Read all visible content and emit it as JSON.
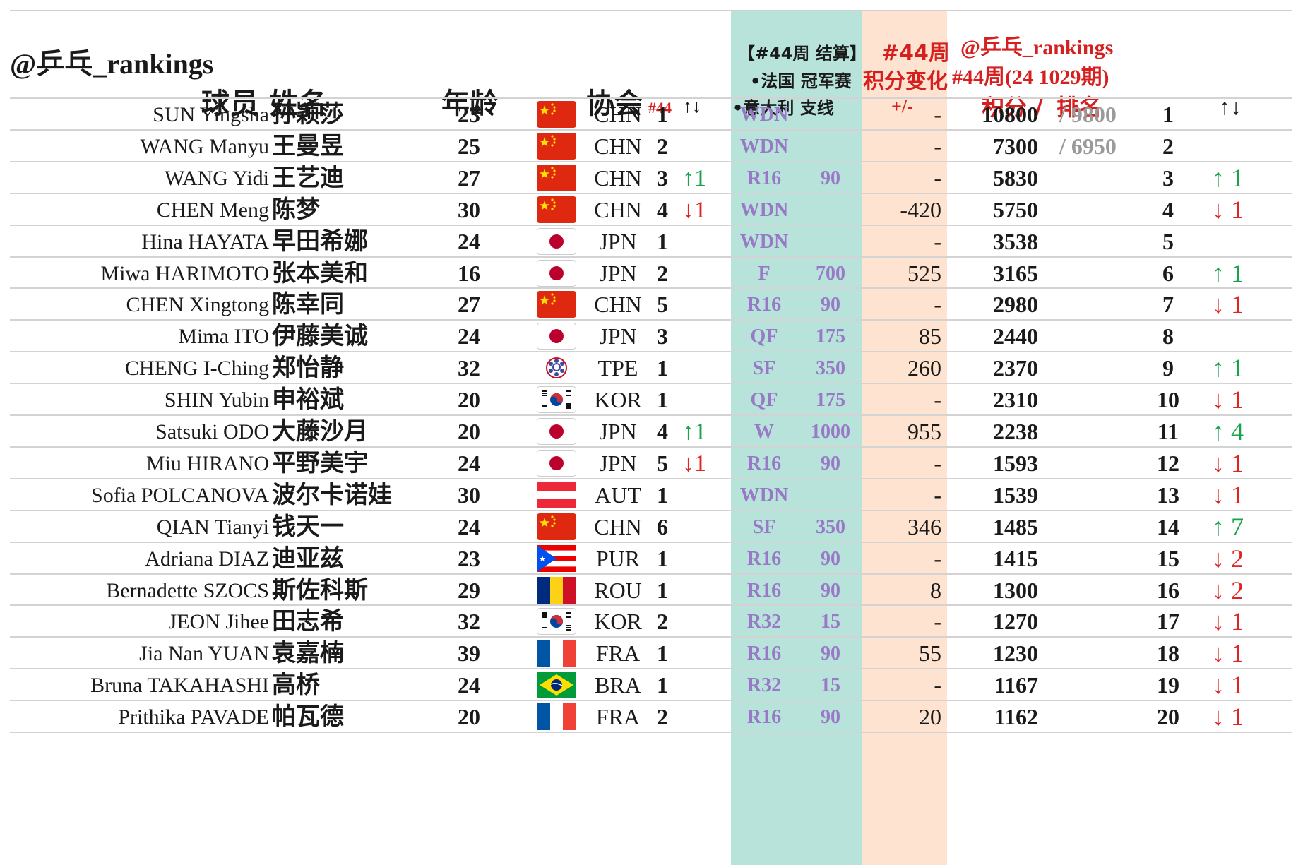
{
  "watermark": "@乒乓_rankings",
  "header": {
    "name": "球员 姓名",
    "age": "年龄",
    "association": "协会",
    "assoc_rank_week": "#44",
    "assoc_rank_arrows": "↑↓",
    "result_title": "【#44周 结算】",
    "result_event1": "•法国 冠军赛",
    "result_event2": "•意大利 支线",
    "change_title_1": "#44周",
    "change_title_2": "积分变化",
    "change_sub": "+/-",
    "ranking_title_1": "@乒乓_rankings",
    "ranking_title_2": "#44周(24 1029期)",
    "ranking_points": "积分 /",
    "ranking_rank": "排名",
    "rank_change_arrows": "↑↓"
  },
  "colors": {
    "result_band": "#b7e3da",
    "change_band": "#fde3d0",
    "red": "#d62020",
    "green": "#16a34a",
    "round_purple": "#9a78c8"
  },
  "rows": [
    {
      "en": "SUN Yingsha",
      "zh": "孙颖莎",
      "age": "23",
      "flag": "chn-flag",
      "code": "CHN",
      "assoc_rank": "1",
      "assoc_move": "",
      "assoc_dir": "",
      "round": "WDN",
      "round_pts": "",
      "delta": "-",
      "points": "10800",
      "prev": "/ 9800",
      "rank": "1",
      "rank_move": "",
      "rank_dir": ""
    },
    {
      "en": "WANG Manyu",
      "zh": "王曼昱",
      "age": "25",
      "flag": "chn-flag",
      "code": "CHN",
      "assoc_rank": "2",
      "assoc_move": "",
      "assoc_dir": "",
      "round": "WDN",
      "round_pts": "",
      "delta": "-",
      "points": "7300",
      "prev": "/ 6950",
      "rank": "2",
      "rank_move": "",
      "rank_dir": ""
    },
    {
      "en": "WANG Yidi",
      "zh": "王艺迪",
      "age": "27",
      "flag": "chn-flag",
      "code": "CHN",
      "assoc_rank": "3",
      "assoc_move": "↑1",
      "assoc_dir": "up",
      "round": "R16",
      "round_pts": "90",
      "delta": "-",
      "points": "5830",
      "prev": "",
      "rank": "3",
      "rank_move": "↑ 1",
      "rank_dir": "up"
    },
    {
      "en": "CHEN Meng",
      "zh": "陈梦",
      "age": "30",
      "flag": "chn-flag",
      "code": "CHN",
      "assoc_rank": "4",
      "assoc_move": "↓1",
      "assoc_dir": "down",
      "round": "WDN",
      "round_pts": "",
      "delta": "-420",
      "points": "5750",
      "prev": "",
      "rank": "4",
      "rank_move": "↓ 1",
      "rank_dir": "down"
    },
    {
      "en": "Hina HAYATA",
      "zh": "早田希娜",
      "age": "24",
      "flag": "jpn-flag",
      "code": "JPN",
      "assoc_rank": "1",
      "assoc_move": "",
      "assoc_dir": "",
      "round": "WDN",
      "round_pts": "",
      "delta": "-",
      "points": "3538",
      "prev": "",
      "rank": "5",
      "rank_move": "",
      "rank_dir": ""
    },
    {
      "en": "Miwa HARIMOTO",
      "zh": "张本美和",
      "age": "16",
      "flag": "jpn-flag",
      "code": "JPN",
      "assoc_rank": "2",
      "assoc_move": "",
      "assoc_dir": "",
      "round": "F",
      "round_pts": "700",
      "delta": "525",
      "points": "3165",
      "prev": "",
      "rank": "6",
      "rank_move": "↑ 1",
      "rank_dir": "up"
    },
    {
      "en": "CHEN Xingtong",
      "zh": "陈幸同",
      "age": "27",
      "flag": "chn-flag",
      "code": "CHN",
      "assoc_rank": "5",
      "assoc_move": "",
      "assoc_dir": "",
      "round": "R16",
      "round_pts": "90",
      "delta": "-",
      "points": "2980",
      "prev": "",
      "rank": "7",
      "rank_move": "↓ 1",
      "rank_dir": "down"
    },
    {
      "en": "Mima ITO",
      "zh": "伊藤美诚",
      "age": "24",
      "flag": "jpn-flag",
      "code": "JPN",
      "assoc_rank": "3",
      "assoc_move": "",
      "assoc_dir": "",
      "round": "QF",
      "round_pts": "175",
      "delta": "85",
      "points": "2440",
      "prev": "",
      "rank": "8",
      "rank_move": "",
      "rank_dir": ""
    },
    {
      "en": "CHENG I-Ching",
      "zh": "郑怡静",
      "age": "32",
      "flag": "tpe-flag",
      "code": "TPE",
      "assoc_rank": "1",
      "assoc_move": "",
      "assoc_dir": "",
      "round": "SF",
      "round_pts": "350",
      "delta": "260",
      "points": "2370",
      "prev": "",
      "rank": "9",
      "rank_move": "↑ 1",
      "rank_dir": "up"
    },
    {
      "en": "SHIN Yubin",
      "zh": "申裕斌",
      "age": "20",
      "flag": "kor-flag",
      "code": "KOR",
      "assoc_rank": "1",
      "assoc_move": "",
      "assoc_dir": "",
      "round": "QF",
      "round_pts": "175",
      "delta": "-",
      "points": "2310",
      "prev": "",
      "rank": "10",
      "rank_move": "↓ 1",
      "rank_dir": "down"
    },
    {
      "en": "Satsuki ODO",
      "zh": "大藤沙月",
      "age": "20",
      "flag": "jpn-flag",
      "code": "JPN",
      "assoc_rank": "4",
      "assoc_move": "↑1",
      "assoc_dir": "up",
      "round": "W",
      "round_pts": "1000",
      "delta": "955",
      "points": "2238",
      "prev": "",
      "rank": "11",
      "rank_move": "↑ 4",
      "rank_dir": "up"
    },
    {
      "en": "Miu HIRANO",
      "zh": "平野美宇",
      "age": "24",
      "flag": "jpn-flag",
      "code": "JPN",
      "assoc_rank": "5",
      "assoc_move": "↓1",
      "assoc_dir": "down",
      "round": "R16",
      "round_pts": "90",
      "delta": "-",
      "points": "1593",
      "prev": "",
      "rank": "12",
      "rank_move": "↓ 1",
      "rank_dir": "down"
    },
    {
      "en": "Sofia POLCANOVA",
      "zh": "波尔卡诺娃",
      "age": "30",
      "flag": "aut-flag",
      "code": "AUT",
      "assoc_rank": "1",
      "assoc_move": "",
      "assoc_dir": "",
      "round": "WDN",
      "round_pts": "",
      "delta": "-",
      "points": "1539",
      "prev": "",
      "rank": "13",
      "rank_move": "↓ 1",
      "rank_dir": "down"
    },
    {
      "en": "QIAN Tianyi",
      "zh": "钱天一",
      "age": "24",
      "flag": "chn-flag",
      "code": "CHN",
      "assoc_rank": "6",
      "assoc_move": "",
      "assoc_dir": "",
      "round": "SF",
      "round_pts": "350",
      "delta": "346",
      "points": "1485",
      "prev": "",
      "rank": "14",
      "rank_move": "↑ 7",
      "rank_dir": "up"
    },
    {
      "en": "Adriana DIAZ",
      "zh": "迪亚兹",
      "age": "23",
      "flag": "pur-flag",
      "code": "PUR",
      "assoc_rank": "1",
      "assoc_move": "",
      "assoc_dir": "",
      "round": "R16",
      "round_pts": "90",
      "delta": "-",
      "points": "1415",
      "prev": "",
      "rank": "15",
      "rank_move": "↓ 2",
      "rank_dir": "down"
    },
    {
      "en": "Bernadette SZOCS",
      "zh": "斯佐科斯",
      "age": "29",
      "flag": "rou-flag",
      "code": "ROU",
      "assoc_rank": "1",
      "assoc_move": "",
      "assoc_dir": "",
      "round": "R16",
      "round_pts": "90",
      "delta": "8",
      "points": "1300",
      "prev": "",
      "rank": "16",
      "rank_move": "↓ 2",
      "rank_dir": "down"
    },
    {
      "en": "JEON Jihee",
      "zh": "田志希",
      "age": "32",
      "flag": "kor-flag",
      "code": "KOR",
      "assoc_rank": "2",
      "assoc_move": "",
      "assoc_dir": "",
      "round": "R32",
      "round_pts": "15",
      "delta": "-",
      "points": "1270",
      "prev": "",
      "rank": "17",
      "rank_move": "↓ 1",
      "rank_dir": "down"
    },
    {
      "en": "Jia Nan YUAN",
      "zh": "袁嘉楠",
      "age": "39",
      "flag": "fra-flag",
      "code": "FRA",
      "assoc_rank": "1",
      "assoc_move": "",
      "assoc_dir": "",
      "round": "R16",
      "round_pts": "90",
      "delta": "55",
      "points": "1230",
      "prev": "",
      "rank": "18",
      "rank_move": "↓ 1",
      "rank_dir": "down"
    },
    {
      "en": "Bruna TAKAHASHI",
      "zh": "高桥",
      "age": "24",
      "flag": "bra-flag",
      "code": "BRA",
      "assoc_rank": "1",
      "assoc_move": "",
      "assoc_dir": "",
      "round": "R32",
      "round_pts": "15",
      "delta": "-",
      "points": "1167",
      "prev": "",
      "rank": "19",
      "rank_move": "↓ 1",
      "rank_dir": "down"
    },
    {
      "en": "Prithika PAVADE",
      "zh": "帕瓦德",
      "age": "20",
      "flag": "fra-flag",
      "code": "FRA",
      "assoc_rank": "2",
      "assoc_move": "",
      "assoc_dir": "",
      "round": "R16",
      "round_pts": "90",
      "delta": "20",
      "points": "1162",
      "prev": "",
      "rank": "20",
      "rank_move": "↓ 1",
      "rank_dir": "down"
    }
  ]
}
